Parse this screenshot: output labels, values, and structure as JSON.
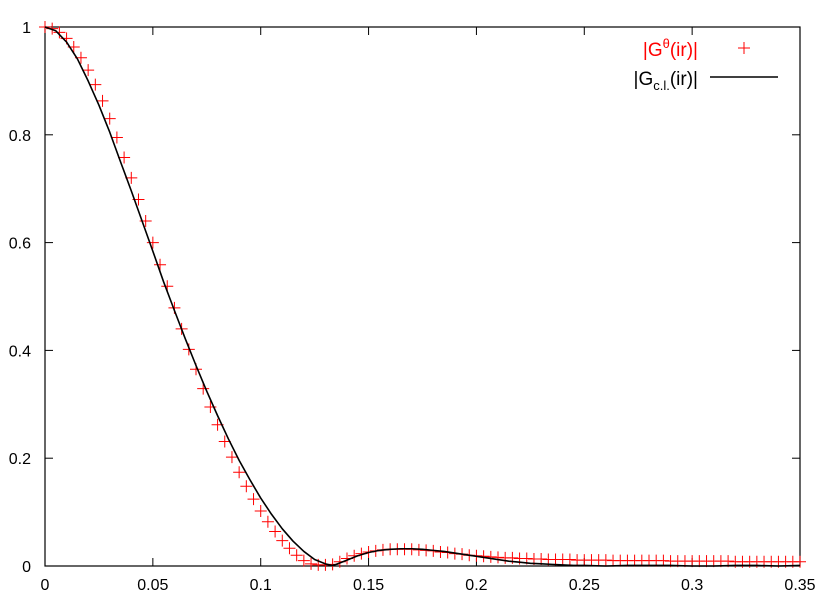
{
  "chart_data": {
    "type": "line",
    "xlim": [
      0,
      0.35
    ],
    "ylim": [
      0,
      1
    ],
    "x_ticks": [
      "0",
      "0.05",
      "0.1",
      "0.15",
      "0.2",
      "0.25",
      "0.3",
      "0.35"
    ],
    "y_ticks": [
      "0",
      "0.2",
      "0.4",
      "0.6",
      "0.8",
      "1"
    ],
    "grid": false,
    "legend_position": "top-right",
    "legend": [
      {
        "prefix": "|G",
        "sup": "θ",
        "suffix": "(ir)|"
      },
      {
        "prefix": "|G",
        "sub": "c.l.",
        "suffix": "(ir)|"
      }
    ],
    "series": [
      {
        "style": "points-plus",
        "color": "#ff0000",
        "x": [
          0,
          0.00333,
          0.00667,
          0.01,
          0.01333,
          0.01667,
          0.02,
          0.02333,
          0.02667,
          0.03,
          0.03333,
          0.03667,
          0.04,
          0.04333,
          0.04667,
          0.05,
          0.05333,
          0.05667,
          0.06,
          0.06333,
          0.06667,
          0.07,
          0.07333,
          0.07667,
          0.08,
          0.08333,
          0.08667,
          0.09,
          0.09333,
          0.09667,
          0.1,
          0.10333,
          0.10667,
          0.11,
          0.11333,
          0.11667,
          0.12,
          0.12333,
          0.12667,
          0.13,
          0.13333,
          0.13667,
          0.14,
          0.14333,
          0.14667,
          0.15,
          0.15333,
          0.15667,
          0.16,
          0.16333,
          0.16667,
          0.17,
          0.17333,
          0.17667,
          0.18,
          0.18333,
          0.18667,
          0.19,
          0.19333,
          0.19667,
          0.2,
          0.20333,
          0.20667,
          0.21,
          0.21333,
          0.21667,
          0.22,
          0.22333,
          0.22667,
          0.23,
          0.23333,
          0.23667,
          0.24,
          0.24333,
          0.24667,
          0.25,
          0.25333,
          0.25667,
          0.26,
          0.26333,
          0.26667,
          0.27,
          0.27333,
          0.27667,
          0.28,
          0.28333,
          0.28667,
          0.29,
          0.29333,
          0.29667,
          0.3,
          0.30333,
          0.30667,
          0.31,
          0.31333,
          0.31667,
          0.32,
          0.32333,
          0.32667,
          0.33,
          0.33333,
          0.33667,
          0.34,
          0.34333,
          0.34667,
          0.35
        ],
        "y": [
          1.0,
          0.997,
          0.99,
          0.979,
          0.963,
          0.943,
          0.92,
          0.893,
          0.863,
          0.83,
          0.795,
          0.758,
          0.72,
          0.68,
          0.64,
          0.6,
          0.559,
          0.519,
          0.479,
          0.44,
          0.402,
          0.365,
          0.329,
          0.295,
          0.262,
          0.231,
          0.202,
          0.174,
          0.148,
          0.124,
          0.102,
          0.082,
          0.064,
          0.047,
          0.033,
          0.02,
          0.01,
          0.004,
          0.002,
          0.002,
          0.003,
          0.008,
          0.014,
          0.019,
          0.023,
          0.026,
          0.028,
          0.03,
          0.031,
          0.031,
          0.031,
          0.031,
          0.03,
          0.029,
          0.028,
          0.026,
          0.025,
          0.023,
          0.022,
          0.02,
          0.019,
          0.018,
          0.017,
          0.016,
          0.015,
          0.015,
          0.014,
          0.014,
          0.013,
          0.013,
          0.012,
          0.012,
          0.012,
          0.012,
          0.011,
          0.011,
          0.011,
          0.011,
          0.011,
          0.01,
          0.01,
          0.01,
          0.01,
          0.01,
          0.01,
          0.01,
          0.01,
          0.009,
          0.009,
          0.009,
          0.009,
          0.009,
          0.009,
          0.009,
          0.009,
          0.009,
          0.008,
          0.008,
          0.008,
          0.008,
          0.008,
          0.008,
          0.008,
          0.008,
          0.008,
          0.008
        ]
      },
      {
        "style": "line",
        "color": "#000000",
        "x": [
          0,
          0.005,
          0.01,
          0.015,
          0.02,
          0.025,
          0.03,
          0.035,
          0.04,
          0.045,
          0.05,
          0.055,
          0.06,
          0.065,
          0.07,
          0.075,
          0.08,
          0.085,
          0.09,
          0.095,
          0.1,
          0.105,
          0.11,
          0.115,
          0.12,
          0.125,
          0.13,
          0.133,
          0.135,
          0.14,
          0.145,
          0.15,
          0.155,
          0.16,
          0.165,
          0.17,
          0.175,
          0.18,
          0.185,
          0.19,
          0.195,
          0.2,
          0.205,
          0.21,
          0.215,
          0.22,
          0.225,
          0.23,
          0.235,
          0.24,
          0.245,
          0.25,
          0.26,
          0.27,
          0.28,
          0.29,
          0.3,
          0.31,
          0.32,
          0.33,
          0.34,
          0.35
        ],
        "y": [
          1.0,
          0.993,
          0.972,
          0.941,
          0.9,
          0.855,
          0.805,
          0.75,
          0.696,
          0.64,
          0.584,
          0.527,
          0.474,
          0.422,
          0.372,
          0.324,
          0.279,
          0.236,
          0.196,
          0.16,
          0.126,
          0.096,
          0.069,
          0.046,
          0.027,
          0.012,
          0.004,
          0.001,
          0.003,
          0.011,
          0.019,
          0.025,
          0.029,
          0.031,
          0.032,
          0.032,
          0.031,
          0.029,
          0.027,
          0.024,
          0.021,
          0.018,
          0.015,
          0.012,
          0.009,
          0.007,
          0.005,
          0.004,
          0.003,
          0.002,
          0.001,
          0.001,
          0.0,
          0.001,
          0.001,
          0.001,
          0.0,
          0.0,
          0.001,
          0.001,
          0.0,
          0.001
        ]
      }
    ]
  }
}
